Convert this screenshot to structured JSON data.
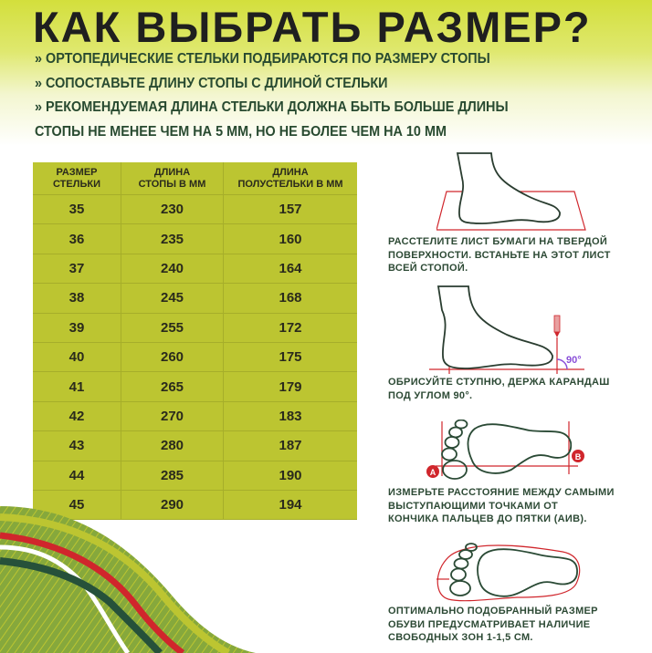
{
  "title": "КАК ВЫБРАТЬ РАЗМЕР?",
  "bullets": [
    "» ОРТОПЕДИЧЕСКИЕ СТЕЛЬКИ ПОДБИРАЮТСЯ ПО РАЗМЕРУ СТОПЫ",
    "» СОПОСТАВЬТЕ ДЛИНУ СТОПЫ С ДЛИНОЙ СТЕЛЬКИ",
    "» РЕКОМЕНДУЕМАЯ ДЛИНА СТЕЛЬКИ ДОЛЖНА БЫТЬ БОЛЬШЕ ДЛИНЫ",
    "СТОПЫ НЕ МЕНЕЕ ЧЕМ НА 5 ММ, НО НЕ БОЛЕЕ ЧЕМ НА 10 ММ"
  ],
  "table": {
    "headers": [
      [
        "РАЗМЕР",
        "СТЕЛЬКИ"
      ],
      [
        "ДЛИНА",
        "СТОПЫ В ММ"
      ],
      [
        "ДЛИНА",
        "ПОЛУСТЕЛЬКИ В ММ"
      ]
    ],
    "rows": [
      [
        "35",
        "230",
        "157"
      ],
      [
        "36",
        "235",
        "160"
      ],
      [
        "37",
        "240",
        "164"
      ],
      [
        "38",
        "245",
        "168"
      ],
      [
        "39",
        "255",
        "172"
      ],
      [
        "40",
        "260",
        "175"
      ],
      [
        "41",
        "265",
        "179"
      ],
      [
        "42",
        "270",
        "183"
      ],
      [
        "43",
        "280",
        "187"
      ],
      [
        "44",
        "285",
        "190"
      ],
      [
        "45",
        "290",
        "194"
      ]
    ]
  },
  "steps": [
    {
      "icon": "foot-on-paper-icon",
      "text": [
        "РАССТЕЛИТЕ ЛИСТ БУМАГИ НА ТВЕРДОЙ",
        "ПОВЕРХНОСТИ. ВСТАНЬТЕ НА ЭТОТ ЛИСТ",
        "ВСЕЙ СТОПОЙ."
      ]
    },
    {
      "icon": "foot-tracing-pencil-icon",
      "angle_label": "90°",
      "text": [
        "ОБРИСУЙТЕ СТУПНЮ, ДЕРЖА КАРАНДАШ",
        "ПОД УГЛОМ 90°."
      ]
    },
    {
      "icon": "footprint-measure-icon",
      "point_a": "A",
      "point_b": "B",
      "text": [
        "ИЗМЕРЬТЕ РАССТОЯНИЕ МЕЖДУ САМЫМИ",
        "ВЫСТУПАЮЩИМИ ТОЧКАМИ ОТ",
        "КОНЧИКА ПАЛЬЦЕВ ДО ПЯТКИ (АИВ)."
      ]
    },
    {
      "icon": "footprint-in-shoe-icon",
      "text": [
        "ОПТИМАЛЬНО ПОДОБРАННЫЙ РАЗМЕР",
        "ОБУВИ ПРЕДУСМАТРИВАЕТ НАЛИЧИЕ",
        "СВОБОДНЫХ ЗОН 1-1,5 СМ."
      ]
    }
  ],
  "colors": {
    "accent_green": "#bcc531",
    "text_green": "#284a30",
    "red": "#d0262c",
    "dark_green": "#26513a",
    "purple": "#8a4fd8"
  }
}
